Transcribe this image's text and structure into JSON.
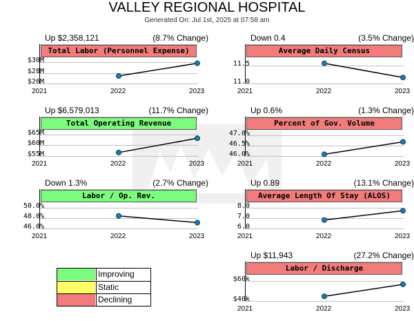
{
  "header": {
    "title": "VALLEY REGIONAL HOSPITAL",
    "subtitle": "Generated On: Jul 1st, 2025 at 07:58 am"
  },
  "legend": [
    {
      "label": "Improving",
      "color": "#7cfc7c"
    },
    {
      "label": "Static",
      "color": "#ffff66"
    },
    {
      "label": "Declining",
      "color": "#f27c7c"
    }
  ],
  "chart_data": [
    {
      "type": "line",
      "title": "Total Labor (Personnel Expense)",
      "status": "declining",
      "stat_left": "Up $2,358,121",
      "stat_right": "(8.7% Change)",
      "x": [
        "2021",
        "2022",
        "2023"
      ],
      "values": [
        null,
        27.3,
        29.7
      ],
      "ylim": [
        26,
        30.7
      ],
      "ytick_values": [
        30,
        28,
        26
      ],
      "ytick_labels": [
        "$30M",
        "$28M",
        "$26M"
      ]
    },
    {
      "type": "line",
      "title": "Average Daily Census",
      "status": "declining",
      "stat_left": "Down 0.4",
      "stat_right": "(3.5% Change)",
      "x": [
        "2021",
        "2022",
        "2023"
      ],
      "values": [
        null,
        11.55,
        11.15
      ],
      "ylim": [
        11.0,
        11.7
      ],
      "ytick_values": [
        11.5,
        11.0
      ],
      "ytick_labels": [
        "11.5",
        "11.0"
      ]
    },
    {
      "type": "line",
      "title": "Total Operating Revenue",
      "status": "improving",
      "stat_left": "Up $6,579,013",
      "stat_right": "(11.7% Change)",
      "x": [
        "2021",
        "2022",
        "2023"
      ],
      "values": [
        null,
        56.3,
        62.9
      ],
      "ylim": [
        55,
        66.5
      ],
      "ytick_values": [
        65,
        60,
        55
      ],
      "ytick_labels": [
        "$65M",
        "$60M",
        "$55M"
      ]
    },
    {
      "type": "line",
      "title": "Percent of Gov. Volume",
      "status": "declining",
      "stat_left": "Up 0.6%",
      "stat_right": "(1.3% Change)",
      "x": [
        "2021",
        "2022",
        "2023"
      ],
      "values": [
        null,
        46.05,
        46.65
      ],
      "ylim": [
        46.0,
        47.2
      ],
      "ytick_values": [
        47.0,
        46.5,
        46.0
      ],
      "ytick_labels": [
        "47.0%",
        "46.5%",
        "46.0%"
      ]
    },
    {
      "type": "line",
      "title": "Labor / Op. Rev.",
      "status": "improving",
      "stat_left": "Down 1.3%",
      "stat_right": "(2.7% Change)",
      "x": [
        "2021",
        "2022",
        "2023"
      ],
      "values": [
        null,
        48.3,
        47.0
      ],
      "ylim": [
        46.0,
        50.8
      ],
      "ytick_values": [
        50.0,
        48.0,
        46.0
      ],
      "ytick_labels": [
        "50.0%",
        "48.0%",
        "46.0%"
      ]
    },
    {
      "type": "line",
      "title": "Average Length Of Stay (ALOS)",
      "status": "declining",
      "stat_left": "Up 0.89",
      "stat_right": "(13.1% Change)",
      "x": [
        "2021",
        "2022",
        "2023"
      ],
      "values": [
        null,
        6.75,
        7.65
      ],
      "ylim": [
        6.0,
        8.4
      ],
      "ytick_values": [
        8.0,
        7.0,
        6.0
      ],
      "ytick_labels": [
        "8.0",
        "7.0",
        "6.0"
      ]
    },
    {
      "type": "line",
      "title": "Labor / Discharge",
      "status": "declining",
      "stat_left": "Up $11,943",
      "stat_right": "(27.2% Change)",
      "x": [
        "2021",
        "2022",
        "2023"
      ],
      "values": [
        null,
        44,
        56
      ],
      "ylim": [
        40,
        65
      ],
      "ytick_values": [
        60,
        40
      ],
      "ytick_labels": [
        "$60k",
        "$40k"
      ]
    }
  ]
}
